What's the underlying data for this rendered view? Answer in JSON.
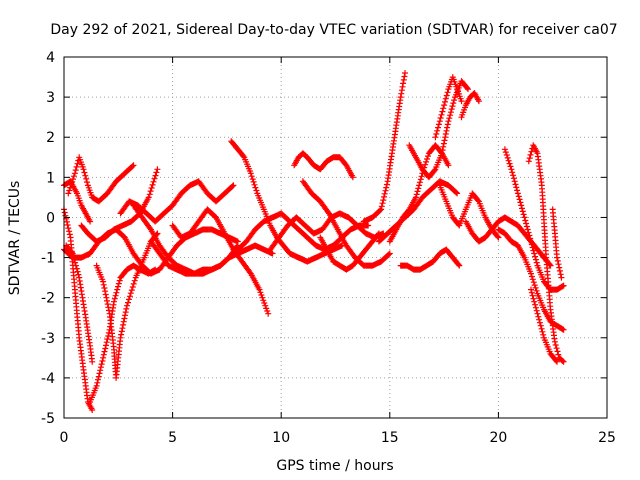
{
  "chart_data": {
    "type": "scatter",
    "title": "Day 292 of 2021, Sidereal Day-to-day VTEC variation (SDTVAR) for receiver ca07",
    "xlabel": "GPS time / hours",
    "ylabel": "SDTVAR / TECUs",
    "xlim": [
      0,
      25
    ],
    "ylim": [
      -5,
      4
    ],
    "xticks": [
      "0",
      "5",
      "10",
      "15",
      "20",
      "25"
    ],
    "yticks": [
      "-5",
      "-4",
      "-3",
      "-2",
      "-1",
      "0",
      "1",
      "2",
      "3",
      "4"
    ],
    "grid": true,
    "marker": "+",
    "color": "#ff0000",
    "series": [
      {
        "x": [
          0.0,
          0.3,
          0.6,
          0.8,
          1.0,
          1.2
        ],
        "y": [
          0.8,
          0.9,
          0.6,
          0.3,
          0.1,
          -0.1
        ]
      },
      {
        "x": [
          0.0,
          0.3,
          0.5,
          0.7,
          0.9,
          1.1,
          1.3
        ],
        "y": [
          0.2,
          -0.5,
          -1.8,
          -3.0,
          -3.8,
          -4.6,
          -4.8
        ]
      },
      {
        "x": [
          0.1,
          0.4,
          0.7,
          1.0,
          1.2,
          1.3
        ],
        "y": [
          -0.7,
          -0.9,
          -1.5,
          -2.5,
          -3.2,
          -3.6
        ]
      },
      {
        "x": [
          0.2,
          0.5,
          0.7,
          0.9,
          1.1,
          1.3,
          1.6,
          2.0,
          2.4,
          2.8,
          3.2
        ],
        "y": [
          0.6,
          1.1,
          1.5,
          1.2,
          0.8,
          0.5,
          0.4,
          0.6,
          0.9,
          1.1,
          1.3
        ]
      },
      {
        "x": [
          1.2,
          1.5,
          1.8,
          2.1,
          2.3,
          2.6,
          2.9,
          3.2,
          3.5,
          3.9,
          4.2
        ],
        "y": [
          -4.6,
          -4.2,
          -3.5,
          -2.8,
          -2.1,
          -1.5,
          -1.3,
          -1.2,
          -1.3,
          -1.4,
          -1.3
        ]
      },
      {
        "x": [
          1.5,
          1.8,
          2.1,
          2.3,
          2.4,
          2.6,
          2.9,
          3.3,
          3.7,
          4.0,
          4.3
        ],
        "y": [
          -1.2,
          -1.6,
          -2.4,
          -3.3,
          -4.0,
          -3.0,
          -2.2,
          -1.5,
          -1.0,
          -0.6,
          -0.4
        ]
      },
      {
        "x": [
          0.8,
          1.1,
          1.5,
          1.9,
          2.3,
          2.7,
          3.1,
          3.5,
          3.9,
          4.3
        ],
        "y": [
          -0.2,
          -0.4,
          -0.6,
          -0.5,
          -0.3,
          -0.2,
          -0.1,
          0.1,
          0.5,
          1.2
        ]
      },
      {
        "x": [
          0.0,
          0.4,
          0.8,
          1.2,
          1.6,
          2.0,
          2.4,
          2.8,
          3.2,
          3.6,
          4.0,
          4.4,
          4.8,
          5.2,
          5.6,
          6.0,
          6.4,
          6.8,
          7.2,
          7.6,
          8.0
        ],
        "y": [
          -0.8,
          -1.0,
          -1.0,
          -0.9,
          -0.6,
          -0.4,
          -0.3,
          -0.5,
          -0.9,
          -1.2,
          -1.4,
          -1.3,
          -1.0,
          -0.7,
          -0.5,
          -0.4,
          -0.3,
          -0.3,
          -0.4,
          -0.5,
          -0.6
        ]
      },
      {
        "x": [
          3.2,
          3.6,
          4.0,
          4.4,
          4.8,
          5.2,
          5.6,
          6.0,
          6.4,
          6.8,
          7.2,
          7.6,
          8.0,
          8.4,
          8.8,
          9.2,
          9.6
        ],
        "y": [
          0.3,
          0.0,
          -0.3,
          -0.7,
          -1.0,
          -1.2,
          -1.3,
          -1.4,
          -1.4,
          -1.3,
          -1.2,
          -1.0,
          -0.9,
          -0.8,
          -0.7,
          -0.8,
          -0.9
        ]
      },
      {
        "x": [
          2.6,
          3.0,
          3.4,
          3.8,
          4.2,
          4.6,
          5.0,
          5.4,
          5.8,
          6.2,
          6.6,
          7.0,
          7.4,
          7.8
        ],
        "y": [
          0.1,
          0.4,
          0.3,
          0.1,
          -0.1,
          0.1,
          0.3,
          0.6,
          0.8,
          0.9,
          0.6,
          0.4,
          0.6,
          0.8
        ]
      },
      {
        "x": [
          4.0,
          4.4,
          4.8,
          5.2,
          5.6,
          6.0,
          6.4,
          6.8,
          7.2,
          7.6,
          8.0
        ],
        "y": [
          -0.6,
          -0.9,
          -1.2,
          -1.3,
          -1.4,
          -1.4,
          -1.3,
          -1.3,
          -1.2,
          -1.0,
          -0.7
        ]
      },
      {
        "x": [
          5.0,
          5.4,
          5.8,
          6.2,
          6.6,
          7.0,
          7.4,
          7.8,
          8.2,
          8.6,
          9.0,
          9.4
        ],
        "y": [
          -0.2,
          -0.5,
          -0.4,
          -0.1,
          0.2,
          0.0,
          -0.4,
          -0.8,
          -1.1,
          -1.4,
          -1.8,
          -2.4
        ]
      },
      {
        "x": [
          7.7,
          8.0,
          8.3,
          8.6,
          8.9,
          9.2,
          9.5,
          9.8,
          10.1,
          10.4,
          10.8,
          11.2,
          11.6,
          12.0,
          12.4,
          12.8
        ],
        "y": [
          1.9,
          1.7,
          1.5,
          1.1,
          0.6,
          0.2,
          -0.2,
          -0.5,
          -0.7,
          -0.9,
          -1.0,
          -1.1,
          -1.0,
          -0.9,
          -0.8,
          -0.7
        ]
      },
      {
        "x": [
          8.0,
          8.4,
          8.8,
          9.2,
          9.6,
          10.0,
          10.4,
          10.8,
          11.2,
          11.6,
          12.0,
          12.4,
          12.8,
          13.2,
          13.6,
          14.0
        ],
        "y": [
          -0.8,
          -0.6,
          -0.3,
          -0.1,
          0.0,
          0.1,
          -0.1,
          -0.3,
          -0.5,
          -0.7,
          -0.8,
          -0.7,
          -0.5,
          -0.3,
          -0.2,
          -0.2
        ]
      },
      {
        "x": [
          9.5,
          9.9,
          10.3,
          10.7,
          11.1,
          11.5,
          11.9,
          12.3,
          12.7,
          13.1,
          13.5,
          13.9,
          14.3,
          14.7
        ],
        "y": [
          -0.8,
          -0.5,
          -0.2,
          0.0,
          -0.2,
          -0.4,
          -0.3,
          0.0,
          0.1,
          0.0,
          -0.2,
          -0.4,
          -0.5,
          -0.4
        ]
      },
      {
        "x": [
          10.6,
          10.8,
          11.0,
          11.2,
          11.5,
          11.8,
          12.1,
          12.4,
          12.7,
          13.0,
          13.3
        ],
        "y": [
          1.3,
          1.5,
          1.6,
          1.5,
          1.3,
          1.2,
          1.4,
          1.5,
          1.5,
          1.3,
          1.0
        ]
      },
      {
        "x": [
          11.0,
          11.4,
          11.8,
          12.2,
          12.6,
          13.0,
          13.4,
          13.8,
          14.2,
          14.6,
          15.0
        ],
        "y": [
          0.9,
          0.6,
          0.4,
          0.1,
          -0.3,
          -0.7,
          -1.0,
          -1.2,
          -1.2,
          -1.1,
          -0.9
        ]
      },
      {
        "x": [
          11.8,
          12.1,
          12.4,
          12.7,
          13.0,
          13.3,
          13.6,
          13.9,
          14.2,
          14.5
        ],
        "y": [
          -0.5,
          -0.8,
          -1.1,
          -1.2,
          -1.3,
          -1.2,
          -1.0,
          -0.8,
          -0.6,
          -0.4
        ]
      },
      {
        "x": [
          13.8,
          14.2,
          14.6,
          14.9,
          15.1,
          15.3,
          15.5,
          15.7
        ],
        "y": [
          -0.1,
          0.0,
          0.2,
          0.9,
          1.6,
          2.3,
          3.0,
          3.6
        ]
      },
      {
        "x": [
          14.5,
          14.9,
          15.3,
          15.7,
          16.1,
          16.5,
          16.9,
          17.3,
          17.7,
          18.1
        ],
        "y": [
          -0.6,
          -0.4,
          -0.2,
          0.0,
          0.2,
          0.5,
          0.7,
          0.9,
          0.8,
          0.6
        ]
      },
      {
        "x": [
          15.5,
          15.8,
          16.1,
          16.4,
          16.7,
          17.0,
          17.3,
          17.6,
          17.9,
          18.2
        ],
        "y": [
          -1.2,
          -1.2,
          -1.3,
          -1.3,
          -1.2,
          -1.1,
          -0.9,
          -0.8,
          -1.0,
          -1.2
        ]
      },
      {
        "x": [
          15.0,
          15.3,
          15.6,
          15.9,
          16.2,
          16.5,
          16.8,
          17.1,
          17.4,
          17.7
        ],
        "y": [
          -0.6,
          -0.3,
          0.0,
          0.2,
          0.5,
          1.1,
          1.6,
          1.8,
          1.6,
          1.3
        ]
      },
      {
        "x": [
          15.9,
          16.2,
          16.5,
          16.8,
          17.1,
          17.4,
          17.7,
          18.0,
          18.3,
          18.6
        ],
        "y": [
          1.8,
          1.5,
          1.2,
          1.0,
          1.2,
          1.6,
          2.4,
          3.0,
          3.4,
          3.2
        ]
      },
      {
        "x": [
          17.1,
          17.3,
          17.5,
          17.7,
          17.9,
          18.1,
          18.3
        ],
        "y": [
          2.0,
          2.4,
          2.8,
          3.2,
          3.5,
          3.2,
          2.9
        ]
      },
      {
        "x": [
          17.3,
          17.6,
          17.9,
          18.2,
          18.5,
          18.8,
          19.1,
          19.4,
          19.7,
          20.0
        ],
        "y": [
          0.8,
          0.4,
          0.0,
          -0.2,
          0.2,
          0.6,
          0.4,
          0.0,
          -0.3,
          -0.5
        ]
      },
      {
        "x": [
          18.3,
          18.5,
          18.7,
          18.9,
          19.1
        ],
        "y": [
          2.5,
          2.8,
          3.0,
          3.1,
          2.9
        ]
      },
      {
        "x": [
          18.5,
          18.8,
          19.1,
          19.4,
          19.7,
          20.0,
          20.3,
          20.6,
          20.9,
          21.2,
          21.5,
          21.8,
          22.1,
          22.4
        ],
        "y": [
          -0.1,
          -0.4,
          -0.6,
          -0.5,
          -0.3,
          -0.1,
          0.0,
          -0.1,
          -0.2,
          -0.4,
          -0.6,
          -0.8,
          -1.0,
          -1.2
        ]
      },
      {
        "x": [
          20.3,
          20.6,
          20.9,
          21.2,
          21.5,
          21.8,
          22.1,
          22.4,
          22.7,
          23.0
        ],
        "y": [
          1.7,
          1.2,
          0.6,
          0.0,
          -0.6,
          -1.2,
          -1.6,
          -1.8,
          -1.8,
          -1.7
        ]
      },
      {
        "x": [
          20.0,
          20.3,
          20.6,
          20.9,
          21.2,
          21.5,
          21.8,
          22.1,
          22.4,
          22.7,
          23.0
        ],
        "y": [
          -0.3,
          -0.4,
          -0.6,
          -0.7,
          -1.0,
          -1.4,
          -1.9,
          -2.3,
          -2.6,
          -2.7,
          -2.8
        ]
      },
      {
        "x": [
          21.4,
          21.6,
          21.8,
          22.0,
          22.2,
          22.4,
          22.6,
          22.8,
          23.0
        ],
        "y": [
          1.4,
          1.8,
          1.6,
          0.8,
          -1.0,
          -2.3,
          -3.1,
          -3.5,
          -3.6
        ]
      },
      {
        "x": [
          21.5,
          21.8,
          22.1,
          22.4,
          22.7
        ],
        "y": [
          -1.8,
          -2.4,
          -3.0,
          -3.4,
          -3.6
        ]
      },
      {
        "x": [
          22.5,
          22.7,
          22.9
        ],
        "y": [
          0.2,
          -1.0,
          -1.5
        ]
      }
    ]
  }
}
